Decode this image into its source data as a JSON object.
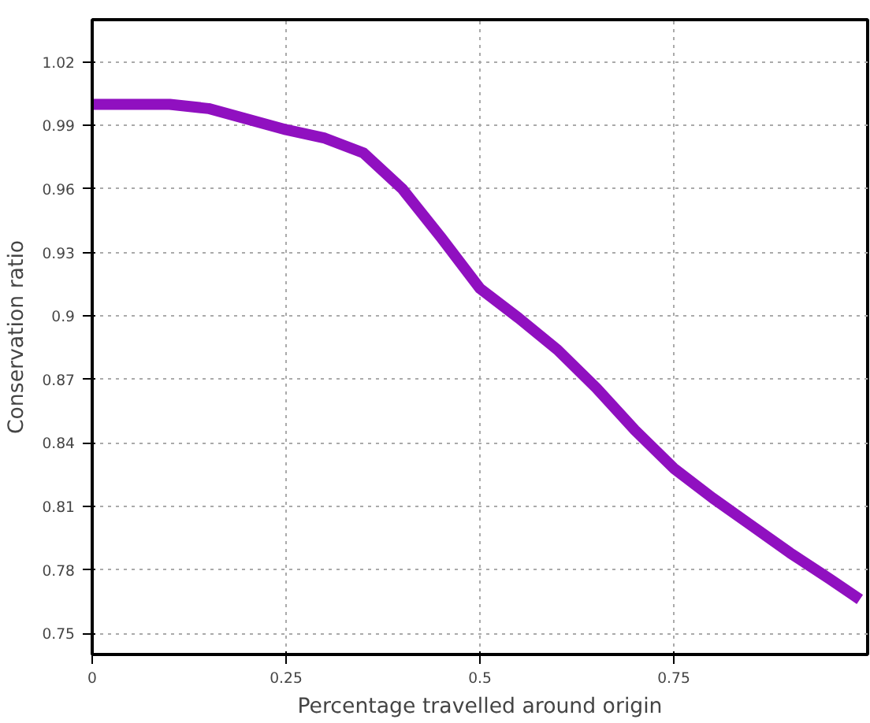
{
  "chart_data": {
    "type": "line",
    "xlabel": "Percentage travelled around origin",
    "ylabel": "Conservation ratio",
    "x": [
      0,
      0.05,
      0.1,
      0.15,
      0.2,
      0.25,
      0.3,
      0.35,
      0.4,
      0.45,
      0.5,
      0.55,
      0.6,
      0.65,
      0.7,
      0.75,
      0.8,
      0.85,
      0.9,
      0.95,
      0.99
    ],
    "series": [
      {
        "color": "#9010c0",
        "values": [
          1.0,
          1.0,
          1.0,
          0.998,
          0.993,
          0.988,
          0.984,
          0.977,
          0.96,
          0.937,
          0.913,
          0.899,
          0.884,
          0.866,
          0.846,
          0.828,
          0.814,
          0.801,
          0.788,
          0.776,
          0.766
        ]
      }
    ],
    "xlim": [
      0,
      1
    ],
    "xticks": [
      0,
      0.25,
      0.5,
      0.75
    ],
    "ylim": [
      0.74,
      1.04
    ],
    "yticks": [
      0.75,
      0.78,
      0.81,
      0.84,
      0.87,
      0.9,
      0.93,
      0.96,
      0.99,
      1.02
    ],
    "grid": true,
    "line_style": "solid"
  }
}
